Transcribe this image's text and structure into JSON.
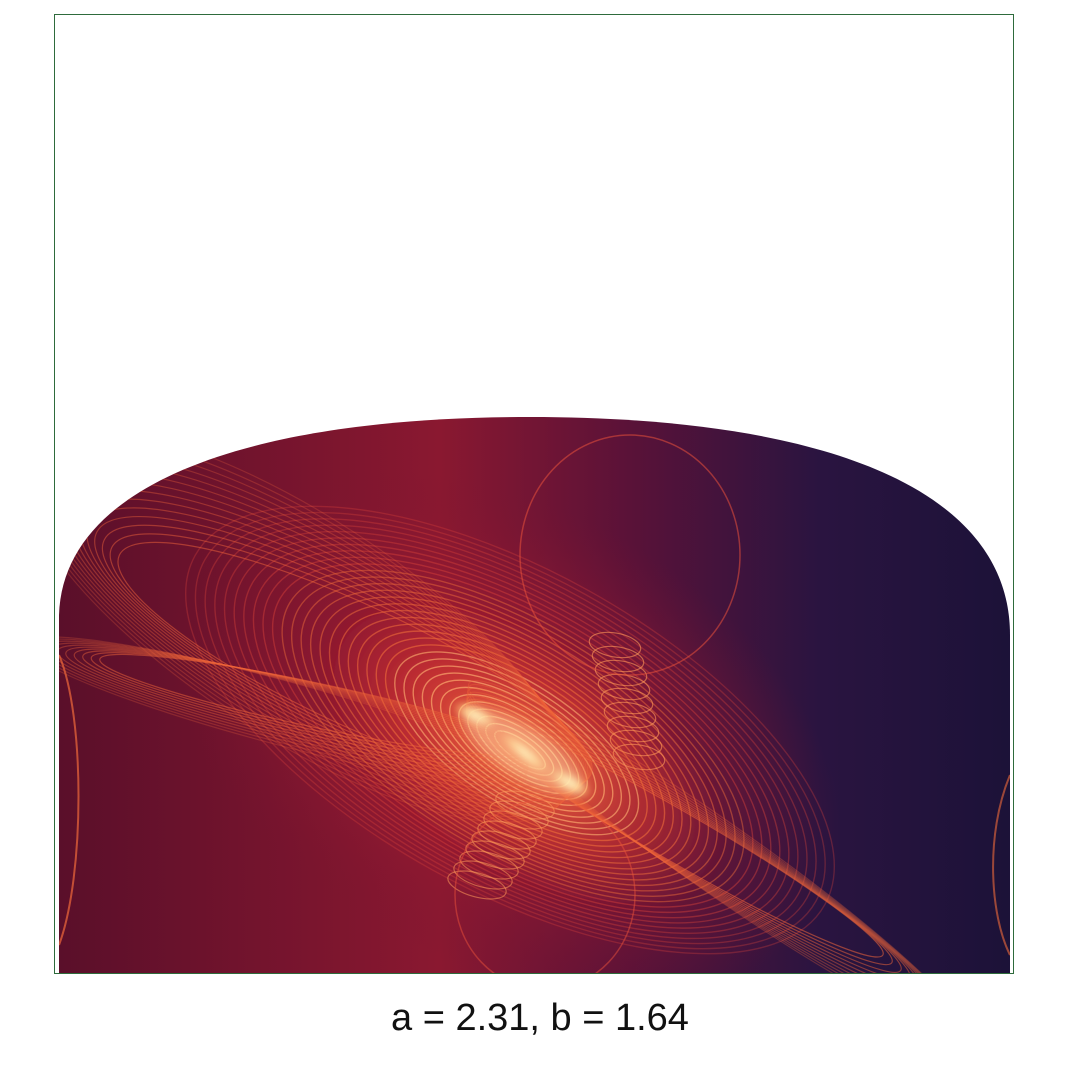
{
  "caption": "a = 2.31, b = 1.64",
  "colors": {
    "frame_border": "#2e6b3c",
    "background": "#ffffff",
    "dark_navy": "#1c1238",
    "deep_maroon": "#5a0f2a",
    "crimson": "#b01e2e",
    "orange": "#ee5a2c",
    "peach": "#ffc27a",
    "core_yellow": "#fffbd0"
  }
}
